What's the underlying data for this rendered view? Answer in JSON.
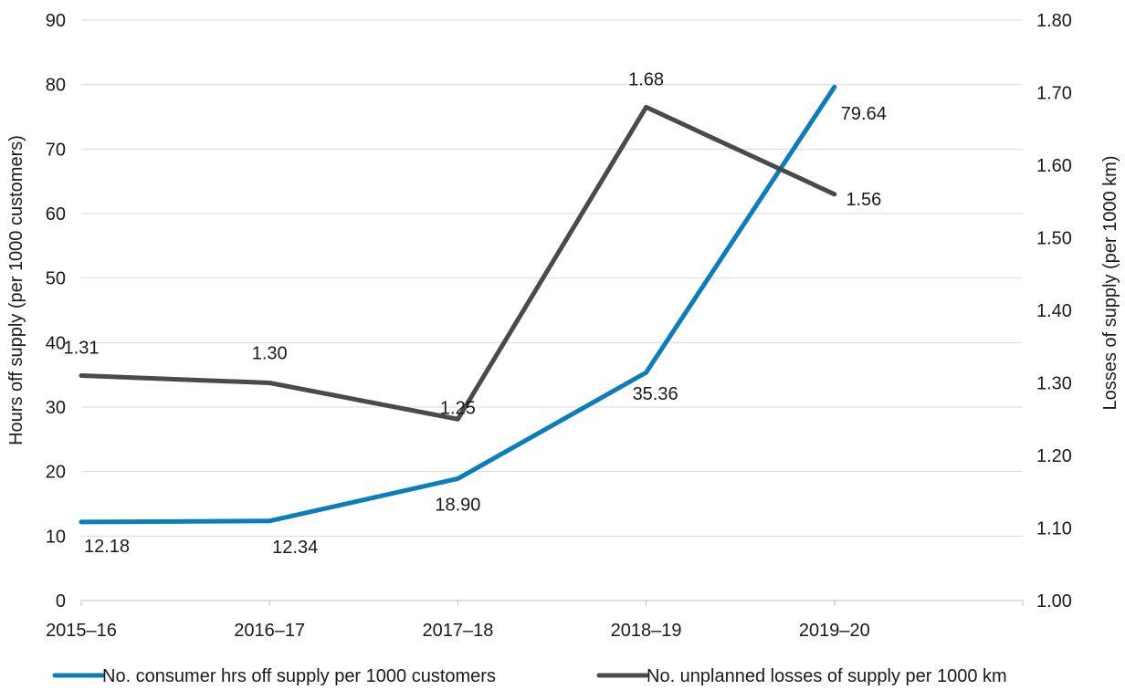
{
  "chart_data": {
    "type": "line",
    "categories": [
      "2015–16",
      "2016–17",
      "2017–18",
      "2018–19",
      "2019–20"
    ],
    "series": [
      {
        "name": "No. consumer hrs off supply per 1000 customers",
        "axis": "left",
        "color": "#0a7dbb",
        "values": [
          12.18,
          12.34,
          18.9,
          35.36,
          79.64
        ],
        "labels": [
          "12.18",
          "12.34",
          "18.90",
          "35.36",
          "79.64"
        ]
      },
      {
        "name": "No. unplanned losses of supply per 1000 km",
        "axis": "right",
        "color": "#4a4a4a",
        "values": [
          1.31,
          1.3,
          1.25,
          1.68,
          1.56
        ],
        "labels": [
          "1.31",
          "1.30",
          "1.25",
          "1.68",
          "1.56"
        ]
      }
    ],
    "y_left": {
      "label": "Hours off supply (per 1000 customers)",
      "ylim": [
        0,
        90
      ],
      "ticks": [
        "0",
        "10",
        "20",
        "30",
        "40",
        "50",
        "60",
        "70",
        "80",
        "90"
      ]
    },
    "y_right": {
      "label": "Losses of supply  (per 1000 km)",
      "ylim": [
        1.0,
        1.8
      ],
      "ticks": [
        "1.00",
        "1.10",
        "1.20",
        "1.30",
        "1.40",
        "1.50",
        "1.60",
        "1.70",
        "1.80"
      ]
    },
    "grid": "horizontal",
    "legend_position": "bottom"
  }
}
